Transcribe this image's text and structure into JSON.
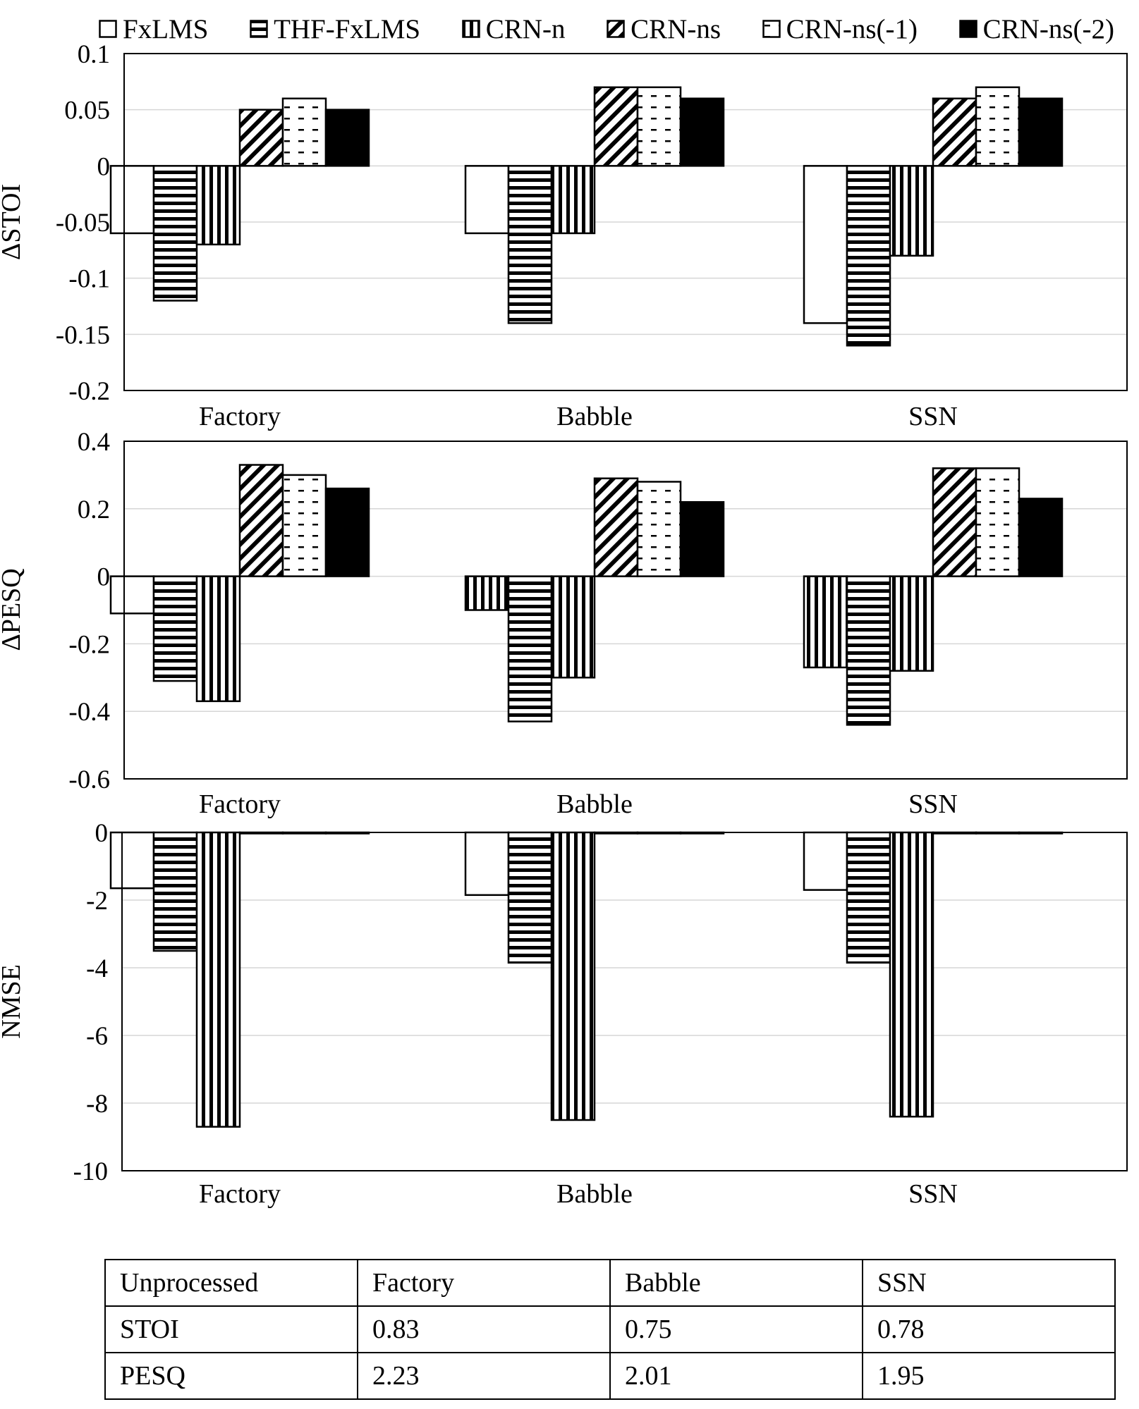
{
  "legend": [
    {
      "name": "FxLMS",
      "pattern": "white"
    },
    {
      "name": "THF-FxLMS",
      "pattern": "hstripes"
    },
    {
      "name": "CRN-n",
      "pattern": "vstripes"
    },
    {
      "name": "CRN-ns",
      "pattern": "diag"
    },
    {
      "name": "CRN-ns(-1)",
      "pattern": "dash"
    },
    {
      "name": "CRN-ns(-2)",
      "pattern": "black"
    }
  ],
  "chart_data": [
    {
      "type": "bar",
      "ylabel": "ΔSTOI",
      "ylim": [
        -0.2,
        0.1
      ],
      "yticks": [
        0.1,
        0.05,
        0,
        -0.05,
        -0.1,
        -0.15,
        -0.2
      ],
      "ytick_labels": [
        "0.1",
        "0.05",
        "0",
        "-0.05",
        "-0.1",
        "-0.15",
        "-0.2"
      ],
      "grid": true,
      "categories": [
        "Factory",
        "Babble",
        "SSN"
      ],
      "series": [
        {
          "name": "FxLMS",
          "pattern": "white",
          "values": [
            -0.06,
            -0.06,
            -0.14
          ]
        },
        {
          "name": "THF-FxLMS",
          "pattern": "hstripes",
          "values": [
            -0.12,
            -0.14,
            -0.16
          ]
        },
        {
          "name": "CRN-n",
          "pattern": "vstripes",
          "values": [
            -0.07,
            -0.06,
            -0.08
          ]
        },
        {
          "name": "CRN-ns",
          "pattern": "diag",
          "values": [
            0.05,
            0.07,
            0.06
          ]
        },
        {
          "name": "CRN-ns(-1)",
          "pattern": "dash",
          "values": [
            0.06,
            0.07,
            0.07
          ]
        },
        {
          "name": "CRN-ns(-2)",
          "pattern": "black",
          "values": [
            0.05,
            0.06,
            0.06
          ]
        }
      ]
    },
    {
      "type": "bar",
      "ylabel": "ΔPESQ",
      "ylim": [
        -0.6,
        0.4
      ],
      "yticks": [
        0.4,
        0.2,
        0,
        -0.2,
        -0.4,
        -0.6
      ],
      "ytick_labels": [
        "0.4",
        "0.2",
        "0",
        "-0.2",
        "-0.4",
        "-0.6"
      ],
      "grid": true,
      "categories": [
        "Factory",
        "Babble",
        "SSN"
      ],
      "series": [
        {
          "name": "FxLMS",
          "pattern_per_point": [
            "white",
            "vstripes",
            "vstripes"
          ],
          "values": [
            -0.11,
            -0.1,
            -0.27
          ]
        },
        {
          "name": "THF-FxLMS",
          "pattern": "hstripes",
          "values": [
            -0.31,
            -0.43,
            -0.44
          ]
        },
        {
          "name": "CRN-n",
          "pattern": "vstripes",
          "values": [
            -0.37,
            -0.3,
            -0.28
          ]
        },
        {
          "name": "CRN-ns",
          "pattern": "diag",
          "values": [
            0.33,
            0.29,
            0.32
          ]
        },
        {
          "name": "CRN-ns(-1)",
          "pattern": "dash",
          "values": [
            0.3,
            0.28,
            0.32
          ]
        },
        {
          "name": "CRN-ns(-2)",
          "pattern": "black",
          "values": [
            0.26,
            0.22,
            0.23
          ]
        }
      ]
    },
    {
      "type": "bar",
      "ylabel": "NMSE",
      "ylim": [
        -10,
        0
      ],
      "yticks": [
        0,
        -2,
        -4,
        -6,
        -8,
        -10
      ],
      "ytick_labels": [
        "0",
        "-2",
        "-4",
        "-6",
        "-8",
        "-10"
      ],
      "grid": true,
      "categories": [
        "Factory",
        "Babble",
        "SSN"
      ],
      "series": [
        {
          "name": "FxLMS",
          "pattern": "white",
          "values": [
            -1.65,
            -1.85,
            -1.7
          ]
        },
        {
          "name": "THF-FxLMS",
          "pattern": "hstripes",
          "values": [
            -3.5,
            -3.85,
            -3.85
          ]
        },
        {
          "name": "CRN-n",
          "pattern": "vstripes",
          "values": [
            -8.7,
            -8.5,
            -8.4
          ]
        },
        {
          "name": "CRN-ns",
          "pattern": "diag",
          "values": [
            0,
            0,
            0
          ]
        },
        {
          "name": "CRN-ns(-1)",
          "pattern": "dash",
          "values": [
            0,
            0,
            0
          ]
        },
        {
          "name": "CRN-ns(-2)",
          "pattern": "black",
          "values": [
            0,
            0,
            0
          ]
        }
      ]
    }
  ],
  "table": {
    "header": [
      "Unprocessed",
      "Factory",
      "Babble",
      "SSN"
    ],
    "rows": [
      [
        "STOI",
        "0.83",
        "0.75",
        "0.78"
      ],
      [
        "PESQ",
        "2.23",
        "2.01",
        "1.95"
      ]
    ]
  }
}
